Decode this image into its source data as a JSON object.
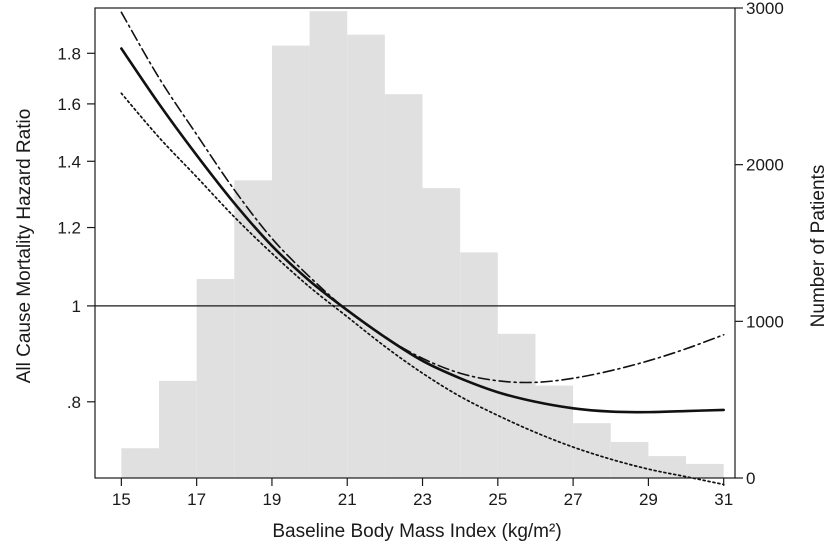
{
  "chart_data": {
    "type": "line",
    "xlabel": "Baseline Body Mass Index (kg/m²)",
    "ylabel_left": "All Cause Mortality Hazard Ratio",
    "ylabel_right": "Number of Patients",
    "x_range": [
      14.3,
      31.3
    ],
    "x_ticks": [
      15,
      17,
      19,
      21,
      23,
      25,
      27,
      29,
      31
    ],
    "y_left_scale": "log",
    "y_left_range": [
      0.67,
      2.0
    ],
    "y_left_ticks": [
      {
        "value": 0.8,
        "label": ".8"
      },
      {
        "value": 1.0,
        "label": "1"
      },
      {
        "value": 1.2,
        "label": "1.2"
      },
      {
        "value": 1.4,
        "label": "1.4"
      },
      {
        "value": 1.6,
        "label": "1.6"
      },
      {
        "value": 1.8,
        "label": "1.8"
      }
    ],
    "y_right_range": [
      0,
      3000
    ],
    "y_right_ticks": [
      0,
      1000,
      2000,
      3000
    ],
    "reference_line_hr": 1.0,
    "grid": false,
    "histogram": {
      "axis": "right",
      "color": "#e0e0e0",
      "bins": [
        {
          "x0": 15,
          "x1": 16,
          "count": 190
        },
        {
          "x0": 16,
          "x1": 17,
          "count": 620
        },
        {
          "x0": 17,
          "x1": 18,
          "count": 1270
        },
        {
          "x0": 18,
          "x1": 19,
          "count": 1900
        },
        {
          "x0": 19,
          "x1": 20,
          "count": 2760
        },
        {
          "x0": 20,
          "x1": 21,
          "count": 2980
        },
        {
          "x0": 21,
          "x1": 22,
          "count": 2830
        },
        {
          "x0": 22,
          "x1": 23,
          "count": 2450
        },
        {
          "x0": 23,
          "x1": 24,
          "count": 1850
        },
        {
          "x0": 24,
          "x1": 25,
          "count": 1440
        },
        {
          "x0": 25,
          "x1": 26,
          "count": 920
        },
        {
          "x0": 26,
          "x1": 27,
          "count": 590
        },
        {
          "x0": 27,
          "x1": 28,
          "count": 350
        },
        {
          "x0": 28,
          "x1": 29,
          "count": 230
        },
        {
          "x0": 29,
          "x1": 30,
          "count": 140
        },
        {
          "x0": 30,
          "x1": 31,
          "count": 90
        }
      ]
    },
    "series": [
      {
        "style": "solid",
        "points": [
          {
            "x": 15,
            "y": 1.82
          },
          {
            "x": 16,
            "y": 1.6
          },
          {
            "x": 17,
            "y": 1.42
          },
          {
            "x": 18,
            "y": 1.27
          },
          {
            "x": 19,
            "y": 1.15
          },
          {
            "x": 20,
            "y": 1.06
          },
          {
            "x": 21,
            "y": 0.99
          },
          {
            "x": 22,
            "y": 0.93
          },
          {
            "x": 23,
            "y": 0.88
          },
          {
            "x": 24,
            "y": 0.845
          },
          {
            "x": 25,
            "y": 0.818
          },
          {
            "x": 26,
            "y": 0.8
          },
          {
            "x": 27,
            "y": 0.788
          },
          {
            "x": 28,
            "y": 0.782
          },
          {
            "x": 29,
            "y": 0.781
          },
          {
            "x": 30,
            "y": 0.783
          },
          {
            "x": 31,
            "y": 0.785
          }
        ]
      },
      {
        "style": "dashdot",
        "points": [
          {
            "x": 15,
            "y": 1.98
          },
          {
            "x": 16,
            "y": 1.7
          },
          {
            "x": 17,
            "y": 1.49
          },
          {
            "x": 18,
            "y": 1.31
          },
          {
            "x": 19,
            "y": 1.17
          },
          {
            "x": 20,
            "y": 1.07
          },
          {
            "x": 21,
            "y": 0.99
          },
          {
            "x": 22,
            "y": 0.93
          },
          {
            "x": 23,
            "y": 0.885
          },
          {
            "x": 24,
            "y": 0.855
          },
          {
            "x": 25,
            "y": 0.84
          },
          {
            "x": 26,
            "y": 0.837
          },
          {
            "x": 27,
            "y": 0.845
          },
          {
            "x": 28,
            "y": 0.86
          },
          {
            "x": 29,
            "y": 0.88
          },
          {
            "x": 30,
            "y": 0.905
          },
          {
            "x": 31,
            "y": 0.935
          }
        ]
      },
      {
        "style": "dotted",
        "points": [
          {
            "x": 15,
            "y": 1.64
          },
          {
            "x": 16,
            "y": 1.48
          },
          {
            "x": 17,
            "y": 1.35
          },
          {
            "x": 18,
            "y": 1.23
          },
          {
            "x": 19,
            "y": 1.13
          },
          {
            "x": 20,
            "y": 1.045
          },
          {
            "x": 21,
            "y": 0.975
          },
          {
            "x": 22,
            "y": 0.91
          },
          {
            "x": 23,
            "y": 0.855
          },
          {
            "x": 24,
            "y": 0.81
          },
          {
            "x": 25,
            "y": 0.775
          },
          {
            "x": 26,
            "y": 0.745
          },
          {
            "x": 27,
            "y": 0.72
          },
          {
            "x": 28,
            "y": 0.7
          },
          {
            "x": 29,
            "y": 0.684
          },
          {
            "x": 30,
            "y": 0.672
          },
          {
            "x": 31,
            "y": 0.66
          }
        ]
      }
    ]
  }
}
